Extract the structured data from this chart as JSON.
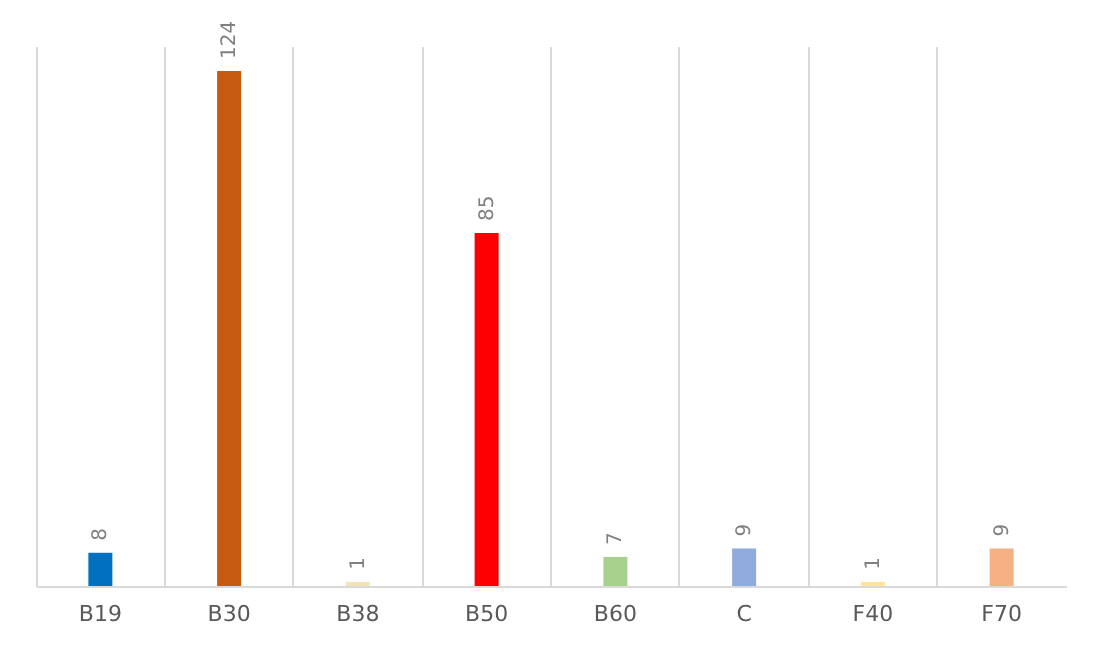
{
  "chart_data": {
    "type": "bar",
    "categories": [
      "B19",
      "B30",
      "B38",
      "B50",
      "B60",
      "C",
      "F40",
      "F70"
    ],
    "values": [
      8,
      124,
      1,
      85,
      7,
      9,
      1,
      9
    ],
    "colors": [
      "#0070c0",
      "#c55a11",
      "#f2e3b6",
      "#ff0000",
      "#a9d18e",
      "#8faadc",
      "#ffe699",
      "#f4b183"
    ],
    "data_labels": true,
    "grid": "x",
    "tick_labels": "x"
  }
}
